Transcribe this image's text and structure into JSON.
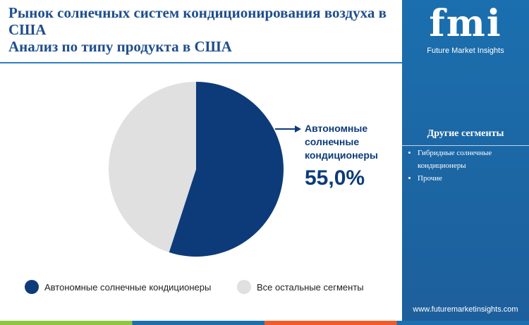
{
  "chart_data": {
    "type": "pie",
    "title": "Рынок солнечных систем кондиционирования воздуха в США",
    "subtitle": "Анализ по типу продукта в США",
    "categories": [
      "Автономные солнечные кондиционеры",
      "Все остальные сегменты"
    ],
    "values": [
      55,
      45
    ],
    "value_labels": [
      "55,0%",
      null
    ],
    "colors": [
      "#0d3b7a",
      "#e0e0e0"
    ]
  },
  "sidebar": {
    "brand": "fmi",
    "brand_name": "Future Market Insights",
    "heading": "Другие сегменты",
    "items": [
      "Гибридные солнечные кондиционеры",
      "Прочие"
    ],
    "website": "www.futuremarketinsights.com"
  }
}
